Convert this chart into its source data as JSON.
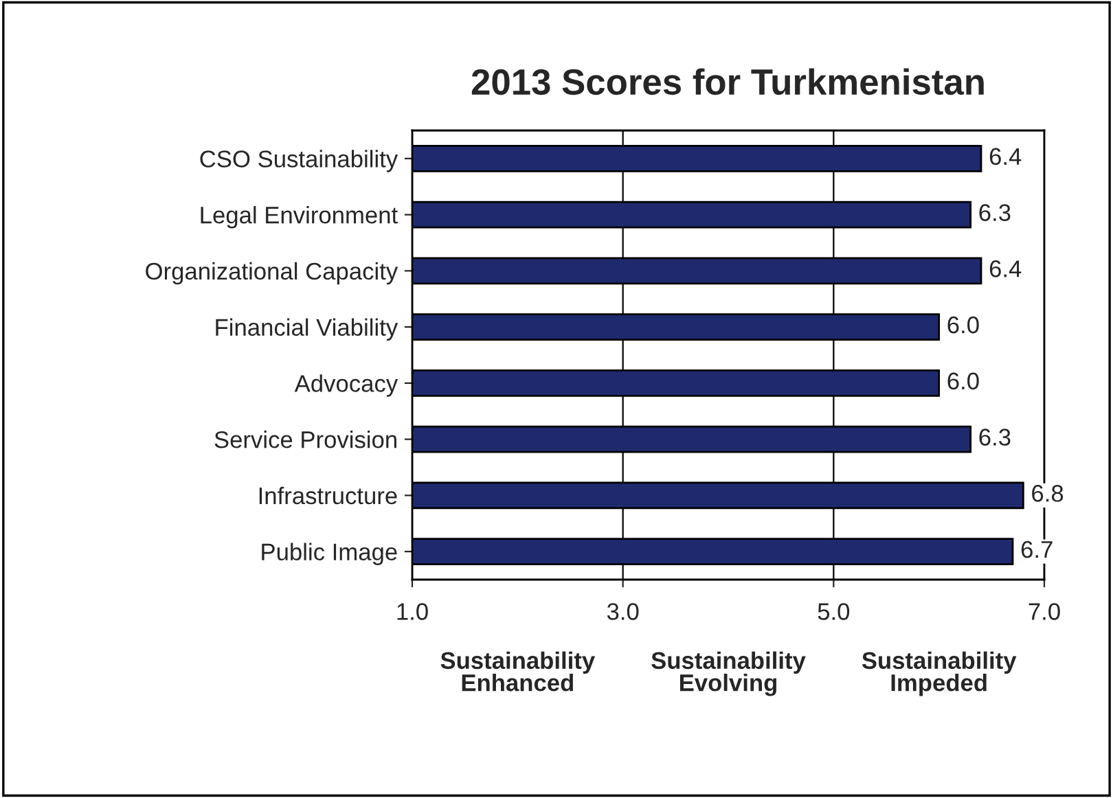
{
  "chart_data": {
    "type": "bar",
    "orientation": "horizontal",
    "title": "2013 Scores for Turkmenistan",
    "categories": [
      "CSO Sustainability",
      "Legal Environment",
      "Organizational Capacity",
      "Financial Viability",
      "Advocacy",
      "Service Provision",
      "Infrastructure",
      "Public Image"
    ],
    "values": [
      6.4,
      6.3,
      6.4,
      6.0,
      6.0,
      6.3,
      6.8,
      6.7
    ],
    "value_labels": [
      "6.4",
      "6.3",
      "6.4",
      "6.0",
      "6.0",
      "6.3",
      "6.8",
      "6.7"
    ],
    "color": "#1f2a6e",
    "xlim": [
      1,
      7
    ],
    "xticks": [
      {
        "value": 1,
        "label": "1.0"
      },
      {
        "value": 3,
        "label": "3.0"
      },
      {
        "value": 5,
        "label": "5.0"
      },
      {
        "value": 7,
        "label": "7.0"
      }
    ],
    "grid": "x",
    "annotations": [
      "Sustainability\nEnhanced",
      "Sustainability\nEvolving",
      "Sustainability\nImpeded"
    ]
  }
}
